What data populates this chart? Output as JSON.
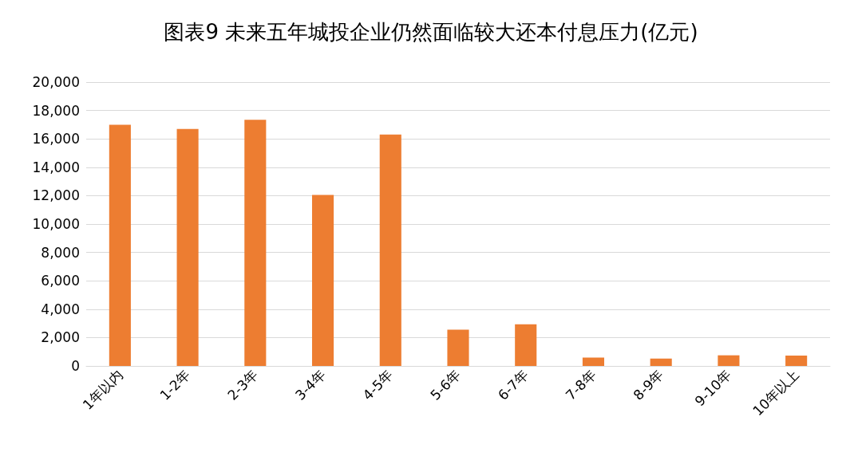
{
  "chart_data": {
    "type": "bar",
    "title": "图表9 未来五年城投企业仍然面临较大还本付息压力(亿元)",
    "categories": [
      "1年以内",
      "1-2年",
      "2-3年",
      "3-4年",
      "4-5年",
      "5-6年",
      "6-7年",
      "7-8年",
      "8-9年",
      "9-10年",
      "10年以上"
    ],
    "values": [
      17000,
      16700,
      17350,
      12050,
      16300,
      2550,
      2930,
      590,
      520,
      750,
      730
    ],
    "color": "#ed7d31",
    "ylim": [
      0,
      20000
    ],
    "yticks": [
      0,
      {
        "value": 2000,
        "label": "2,000"
      },
      {
        "value": 4000,
        "label": "4,000"
      },
      {
        "value": 6000,
        "label": "6,000"
      },
      {
        "value": 8000,
        "label": "8,000"
      },
      {
        "value": 10000,
        "label": "10,000"
      },
      {
        "value": 12000,
        "label": "12,000"
      },
      {
        "value": 14000,
        "label": "14,000"
      },
      {
        "value": 16000,
        "label": "16,000"
      },
      {
        "value": 18000,
        "label": "18,000"
      },
      {
        "value": 20000,
        "label": "20,000"
      }
    ],
    "grid": true
  }
}
